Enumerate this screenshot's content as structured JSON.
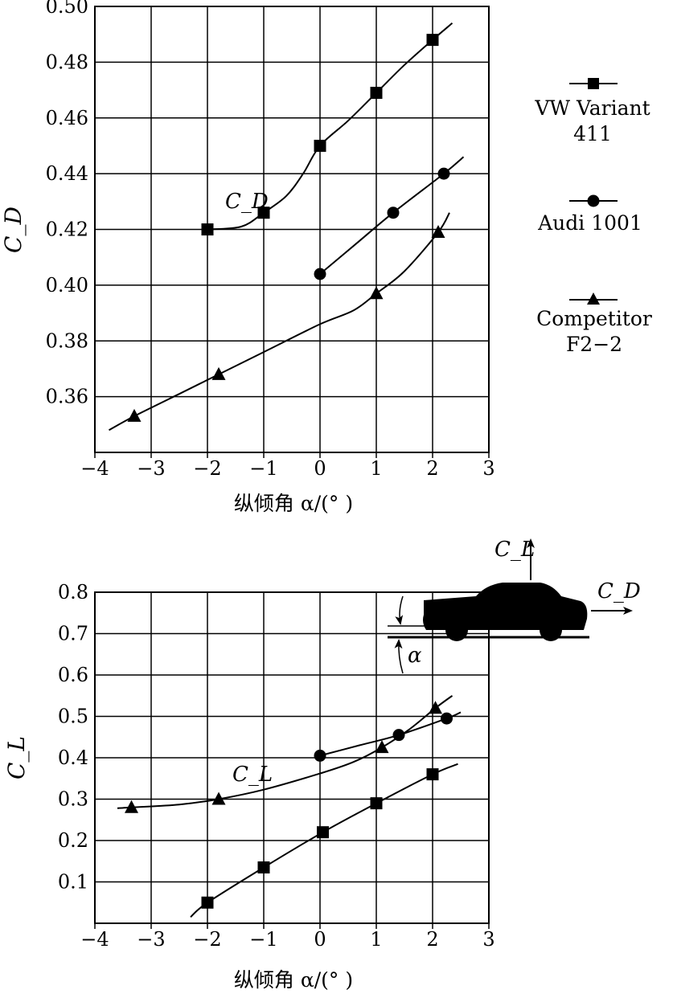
{
  "legend": [
    {
      "marker": "square",
      "lines": [
        "VW Variant",
        "411"
      ]
    },
    {
      "marker": "circle",
      "lines": [
        "Audi 1001"
      ]
    },
    {
      "marker": "triangle",
      "lines": [
        "Competitor",
        "F2−2"
      ]
    }
  ],
  "chart_data": [
    {
      "type": "line",
      "ylabel": "C_D",
      "xlabel": "纵倾角 α/(° )",
      "curve_label": "C_D",
      "xlim": [
        -4,
        3
      ],
      "ylim": [
        0.34,
        0.5
      ],
      "xticks": [
        -4,
        -3,
        -2,
        -1,
        0,
        1,
        2,
        3
      ],
      "yticks": [
        0.36,
        0.38,
        0.4,
        0.42,
        0.44,
        0.46,
        0.48,
        0.5
      ],
      "grid": true,
      "series": [
        {
          "name": "VW Variant 411",
          "marker": "square",
          "x": [
            -2,
            -1,
            0,
            1,
            2
          ],
          "y": [
            0.42,
            0.426,
            0.45,
            0.469,
            0.488
          ],
          "curve": [
            [
              -2.0,
              0.42
            ],
            [
              -1.4,
              0.421
            ],
            [
              -1.0,
              0.426
            ],
            [
              -0.6,
              0.432
            ],
            [
              -0.3,
              0.44
            ],
            [
              0,
              0.45
            ],
            [
              0.5,
              0.459
            ],
            [
              1,
              0.469
            ],
            [
              1.5,
              0.479
            ],
            [
              2,
              0.488
            ],
            [
              2.35,
              0.494
            ]
          ]
        },
        {
          "name": "Audi 1001",
          "marker": "circle",
          "x": [
            0,
            1.3,
            2.2
          ],
          "y": [
            0.404,
            0.426,
            0.44
          ],
          "curve": [
            [
              0,
              0.404
            ],
            [
              0.65,
              0.415
            ],
            [
              1.3,
              0.426
            ],
            [
              2.2,
              0.44
            ],
            [
              2.55,
              0.446
            ]
          ]
        },
        {
          "name": "Competitor F2-2",
          "marker": "triangle",
          "x": [
            -3.3,
            -1.8,
            1.0,
            2.1
          ],
          "y": [
            0.353,
            0.368,
            0.397,
            0.419
          ],
          "curve": [
            [
              -3.75,
              0.348
            ],
            [
              -3.3,
              0.353
            ],
            [
              -2.5,
              0.361
            ],
            [
              -1.8,
              0.368
            ],
            [
              -1,
              0.376
            ],
            [
              0,
              0.386
            ],
            [
              0.6,
              0.391
            ],
            [
              1.0,
              0.397
            ],
            [
              1.5,
              0.405
            ],
            [
              2.1,
              0.419
            ],
            [
              2.3,
              0.426
            ]
          ]
        }
      ]
    },
    {
      "type": "line",
      "ylabel": "C_L",
      "xlabel": "纵倾角 α/(° )",
      "curve_label": "C_L",
      "xlim": [
        -4,
        3
      ],
      "ylim": [
        0,
        0.8
      ],
      "xticks": [
        -4,
        -3,
        -2,
        -1,
        0,
        1,
        2,
        3
      ],
      "yticks": [
        0.1,
        0.2,
        0.3,
        0.4,
        0.5,
        0.6,
        0.7,
        0.8
      ],
      "grid": true,
      "series": [
        {
          "name": "VW Variant 411",
          "marker": "square",
          "x": [
            -2,
            -1,
            0.05,
            1,
            2
          ],
          "y": [
            0.05,
            0.135,
            0.22,
            0.29,
            0.36
          ],
          "curve": [
            [
              -2.3,
              0.015
            ],
            [
              -2,
              0.05
            ],
            [
              -1,
              0.135
            ],
            [
              0.05,
              0.22
            ],
            [
              1,
              0.29
            ],
            [
              2,
              0.36
            ],
            [
              2.45,
              0.385
            ]
          ]
        },
        {
          "name": "Audi 1001",
          "marker": "circle",
          "x": [
            0,
            1.4,
            2.25
          ],
          "y": [
            0.405,
            0.455,
            0.495
          ],
          "curve": [
            [
              0,
              0.405
            ],
            [
              0.7,
              0.43
            ],
            [
              1.4,
              0.455
            ],
            [
              2.25,
              0.495
            ],
            [
              2.5,
              0.51
            ]
          ]
        },
        {
          "name": "Competitor F2-2",
          "marker": "triangle",
          "x": [
            -3.35,
            -1.8,
            1.1,
            2.05
          ],
          "y": [
            0.28,
            0.3,
            0.425,
            0.52
          ],
          "curve": [
            [
              -3.6,
              0.278
            ],
            [
              -3.35,
              0.28
            ],
            [
              -2.5,
              0.287
            ],
            [
              -1.8,
              0.3
            ],
            [
              -1,
              0.323
            ],
            [
              0,
              0.362
            ],
            [
              0.6,
              0.39
            ],
            [
              1.1,
              0.425
            ],
            [
              1.6,
              0.47
            ],
            [
              2.05,
              0.52
            ],
            [
              2.35,
              0.55
            ]
          ]
        }
      ]
    }
  ],
  "inset": {
    "lift_label": "C_L",
    "drag_label": "C_D",
    "angle_label": "α"
  }
}
